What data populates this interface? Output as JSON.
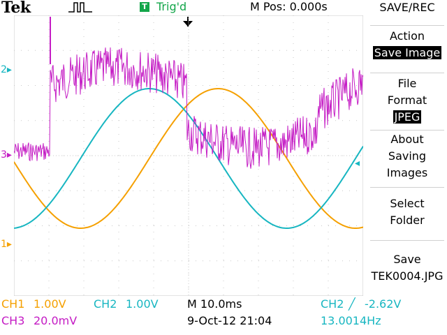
{
  "topbar": {
    "brand": "Tek",
    "trigger_badge": "T",
    "trigger_status": "Trig'd",
    "m_pos": "M Pos: 0.000s"
  },
  "channel_markers": {
    "ch2": "2",
    "ch3": "3",
    "ch1": "1"
  },
  "menu": {
    "title": "SAVE/REC",
    "action_label": "Action",
    "action_value": "Save Image",
    "file_format_label_1": "File",
    "file_format_label_2": "Format",
    "file_format_value": "JPEG",
    "about_1": "About",
    "about_2": "Saving",
    "about_3": "Images",
    "select_1": "Select",
    "select_2": "Folder",
    "save_1": "Save",
    "save_2": "TEK0004.JPG"
  },
  "status": {
    "ch1_label": "CH1",
    "ch1_scale": "1.00V",
    "ch2_label": "CH2",
    "ch2_scale": "1.00V",
    "timebase": "M 10.0ms",
    "trig_src": "CH2",
    "trig_slope": "╱",
    "trig_level": "-2.62V",
    "ch3_label": "CH3",
    "ch3_scale": "20.0mV",
    "datetime": "9-Oct-12 21:04",
    "frequency": "13.0014Hz"
  },
  "colors": {
    "ch1": "#f5a000",
    "ch2": "#17b6c1",
    "ch3": "#c41bc4",
    "grid": "#c8c8c8"
  }
}
